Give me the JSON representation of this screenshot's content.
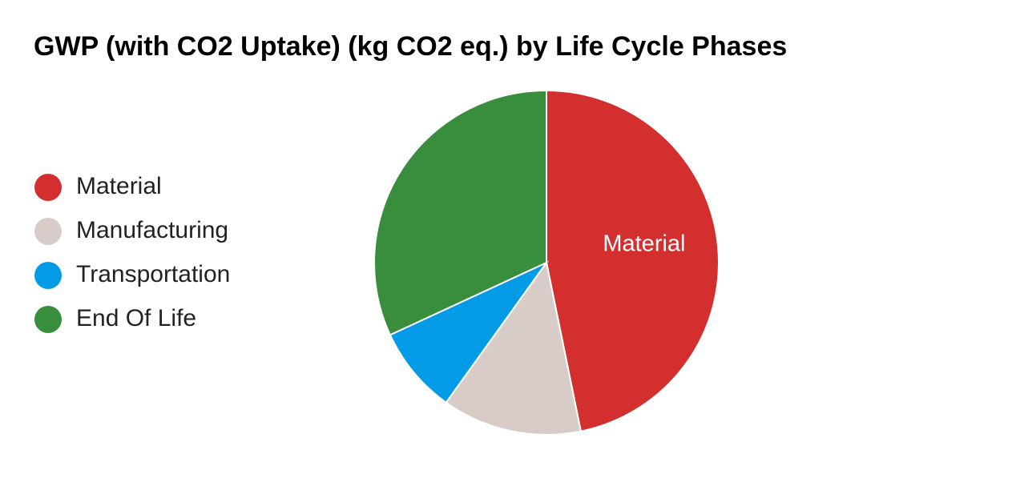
{
  "chart_data": {
    "type": "pie",
    "title": "GWP (with CO2 Uptake) (kg CO2 eq.) by Life Cycle Phases",
    "categories": [
      "Material",
      "Manufacturing",
      "Transportation",
      "End Of Life"
    ],
    "values": [
      46.8,
      13.1,
      8.2,
      31.9
    ],
    "colors": [
      "#d32f2f",
      "#d7ccc8",
      "#039be5",
      "#388e3c"
    ],
    "legend": "left"
  }
}
